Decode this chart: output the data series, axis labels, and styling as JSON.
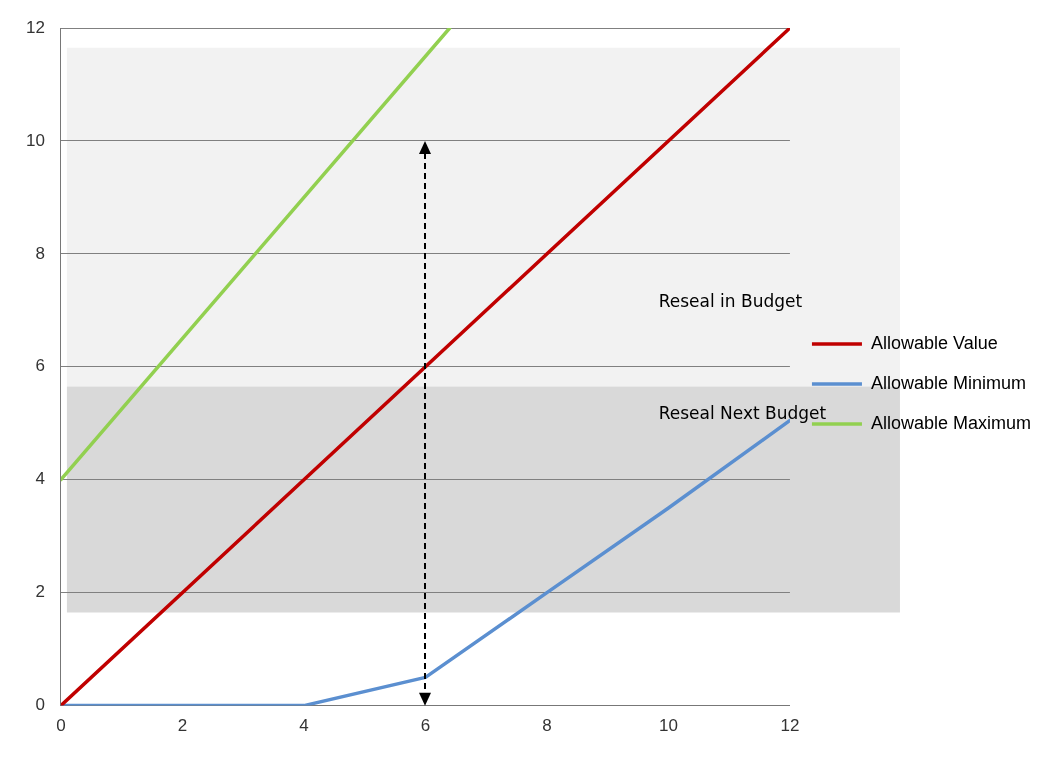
{
  "chart_data": {
    "type": "line",
    "xlim": [
      0,
      12
    ],
    "xticks": [
      0,
      2,
      4,
      6,
      8,
      10,
      12
    ],
    "ylim": [
      0,
      12
    ],
    "yticks": [
      0,
      2,
      4,
      6,
      8,
      10,
      12
    ],
    "grid": "y",
    "legend": "right",
    "marker": "none",
    "line_style": "solid",
    "bands": [
      {
        "axis": "y",
        "from": 5.65,
        "to": 11.65,
        "label": "Reseal in Budget",
        "color": "#f2f2f2"
      },
      {
        "axis": "y",
        "from": 1.65,
        "to": 5.65,
        "label": "Reseal Next Budget",
        "color": "#d9d9d9"
      }
    ],
    "series": [
      {
        "name": "Allowable Value",
        "color": "#c00000",
        "x": [
          0,
          12
        ],
        "values": [
          0,
          12
        ]
      },
      {
        "name": "Allowable Minimum",
        "color": "#5b8fd0",
        "x": [
          0,
          4,
          6,
          8,
          10,
          12
        ],
        "values": [
          0,
          0,
          0.5,
          2,
          3.5,
          5.05
        ]
      },
      {
        "name": "Allowable Maximum",
        "color": "#92d050",
        "x": [
          0,
          6.4
        ],
        "values": [
          4,
          12
        ]
      }
    ]
  }
}
